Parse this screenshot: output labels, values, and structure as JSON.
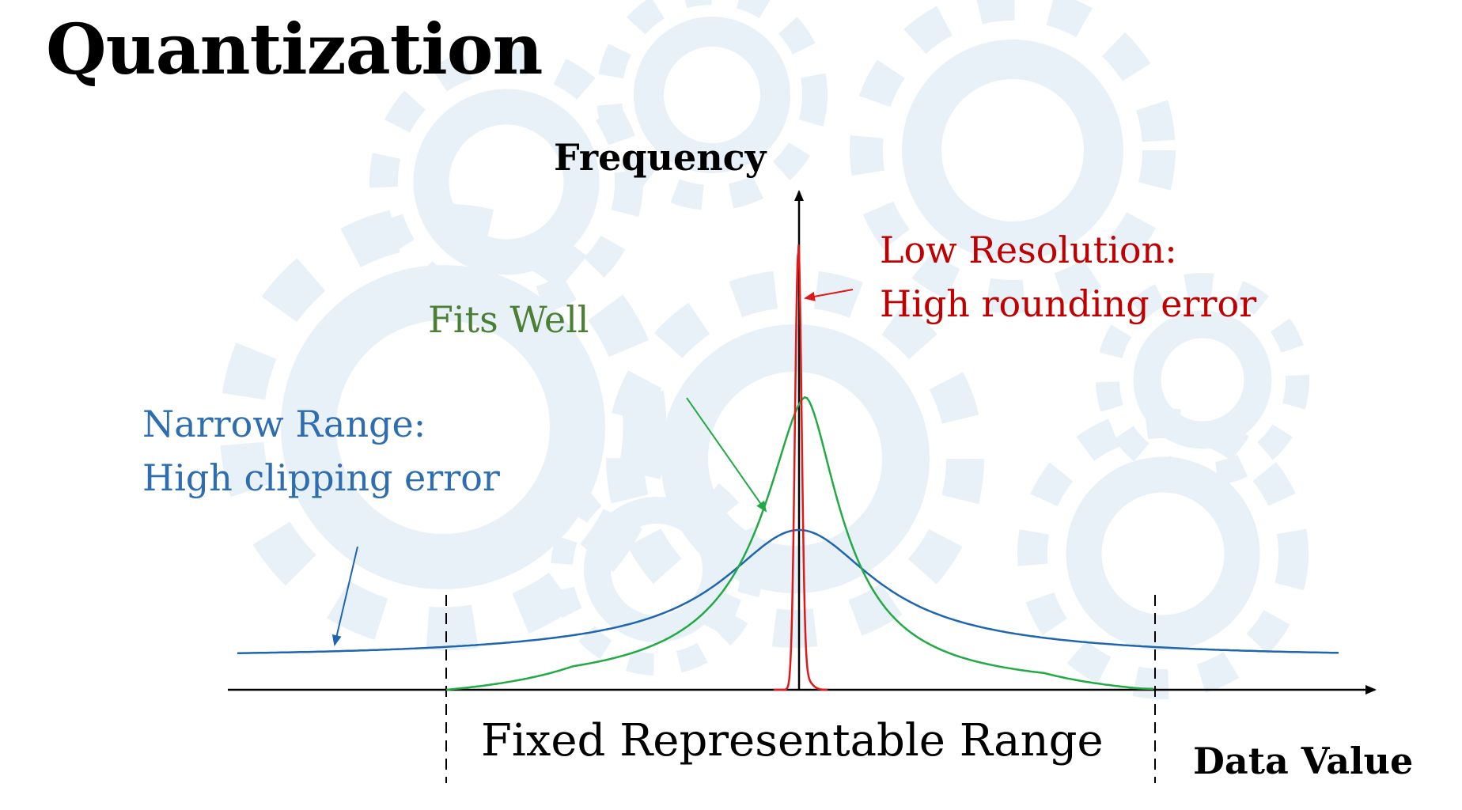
{
  "slide": {
    "title": "Quantization"
  },
  "diagram": {
    "y_axis_label": "Frequency",
    "x_axis_label": "Data Value",
    "range_label": "Fixed Representable Range",
    "annotations": {
      "low_resolution_line1": "Low Resolution:",
      "low_resolution_line2": "High rounding error",
      "fits_well": "Fits Well",
      "narrow_range_line1": "Narrow Range:",
      "narrow_range_line2": "High clipping error"
    },
    "colors": {
      "red": "#e01818",
      "green": "#22aa44",
      "blue": "#1f65b0",
      "red_text": "#c00000",
      "green_text": "#4a7f34",
      "blue_text": "#2e6db0",
      "gear": "#e9f1f8"
    },
    "curves": {
      "red": "narrow-tall-peak",
      "green": "medium-peak-fits-range",
      "blue": "wide-flat-heavy-tails"
    }
  }
}
